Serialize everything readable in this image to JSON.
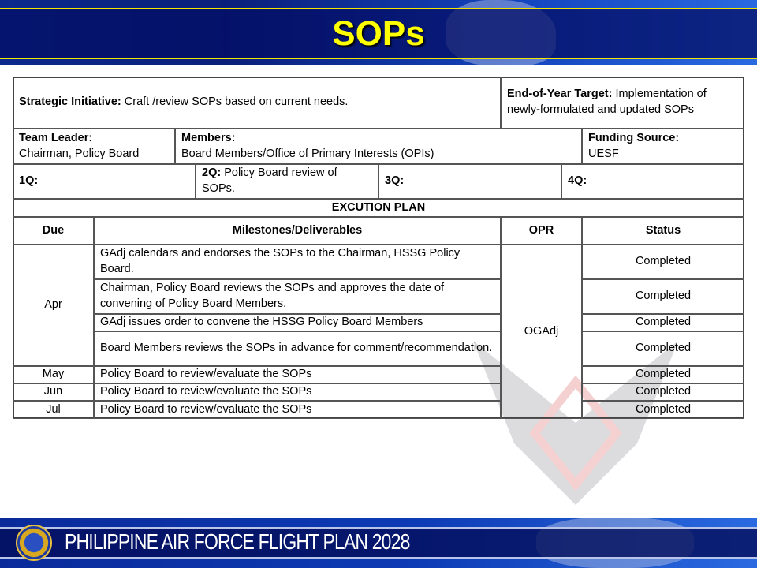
{
  "header": {
    "title": "SOPs"
  },
  "footer": {
    "text": "PHILIPPINE AIR FORCE FLIGHT PLAN 2028",
    "seal_icon": "paf-seal-icon"
  },
  "summary": {
    "strategic_label": "Strategic Initiative:",
    "strategic_value": "Craft /review SOPs based on current needs.",
    "target_label": "End-of-Year Target:",
    "target_value": "Implementation of newly-formulated and updated SOPs",
    "team_label": "Team Leader:",
    "team_value": "Chairman, Policy Board",
    "members_label": "Members:",
    "members_value": "Board Members/Office of Primary Interests (OPIs)",
    "funding_label": "Funding Source:",
    "funding_value": "UESF",
    "q1_label": "1Q:",
    "q2_label": "2Q:",
    "q2_value": "Policy Board review of SOPs.",
    "q3_label": "3Q:",
    "q4_label": "4Q:"
  },
  "plan": {
    "title": "EXCUTION PLAN",
    "headers": [
      "Due",
      "Milestones/Deliverables",
      "OPR",
      "Status"
    ],
    "opr": "OGAdj",
    "due": [
      "Apr",
      "May",
      "Jun",
      "Jul"
    ],
    "rows": [
      {
        "milestone": "GAdj calendars and endorses the SOPs to the Chairman, HSSG Policy Board.",
        "status": "Completed"
      },
      {
        "milestone": "Chairman, Policy Board reviews the SOPs and approves the date of convening of Policy Board Members.",
        "status": "Completed"
      },
      {
        "milestone": "GAdj issues order to convene the HSSG Policy Board Members",
        "status": "Completed"
      },
      {
        "milestone": "Board Members reviews the SOPs in advance for comment/recommendation.",
        "status": "Completed"
      },
      {
        "milestone": "Policy Board to review/evaluate the SOPs",
        "status": "Completed"
      },
      {
        "milestone": "Policy Board to review/evaluate the SOPs",
        "status": "Completed"
      },
      {
        "milestone": "Policy Board to review/evaluate the SOPs",
        "status": "Completed"
      }
    ]
  }
}
